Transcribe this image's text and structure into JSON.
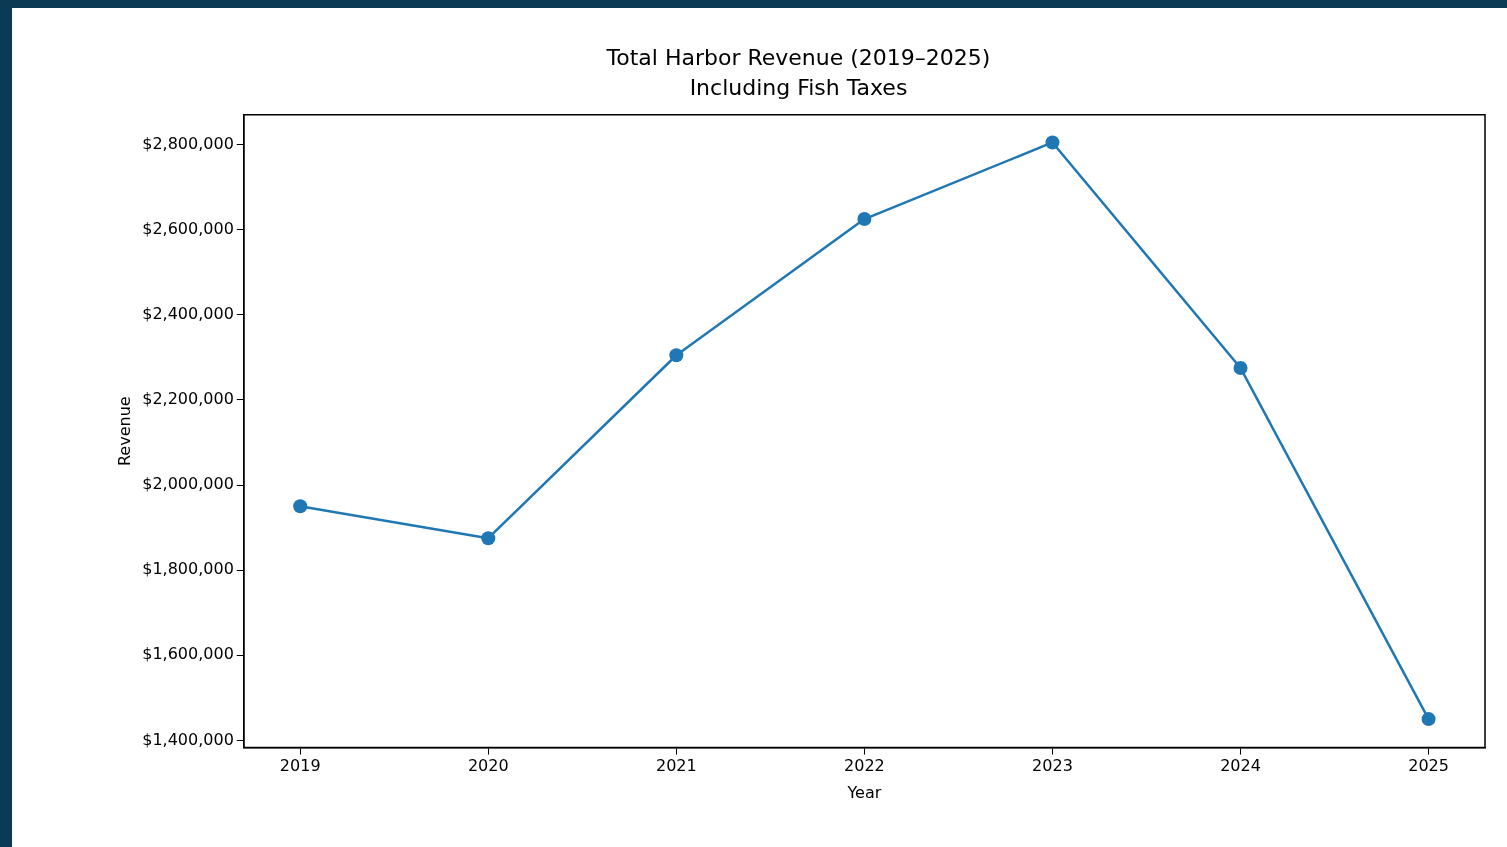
{
  "chart_data": {
    "type": "line",
    "title": "Total Harbor Revenue (2019–2025)",
    "subtitle": "Including Fish Taxes",
    "xlabel": "Year",
    "ylabel": "Revenue",
    "x": [
      2019,
      2020,
      2021,
      2022,
      2023,
      2024,
      2025
    ],
    "series": [
      {
        "color": "#1f77b4",
        "values": [
          1950000,
          1875000,
          2305000,
          2625000,
          2805000,
          2275000,
          1450000
        ]
      }
    ],
    "xlim": [
      2018.7,
      2025.3
    ],
    "xticks": [
      2019,
      2020,
      2021,
      2022,
      2023,
      2024,
      2025
    ],
    "ylim": [
      1383000,
      2870000
    ],
    "yticks": [
      {
        "value": 1400000,
        "label": "$1,400,000"
      },
      {
        "value": 1600000,
        "label": "$1,600,000"
      },
      {
        "value": 1800000,
        "label": "$1,800,000"
      },
      {
        "value": 2000000,
        "label": "$2,000,000"
      },
      {
        "value": 2200000,
        "label": "$2,200,000"
      },
      {
        "value": 2400000,
        "label": "$2,400,000"
      },
      {
        "value": 2600000,
        "label": "$2,600,000"
      },
      {
        "value": 2800000,
        "label": "$2,800,000"
      }
    ],
    "marker": "circle",
    "line_style": "solid",
    "grid": false,
    "legend": false
  }
}
